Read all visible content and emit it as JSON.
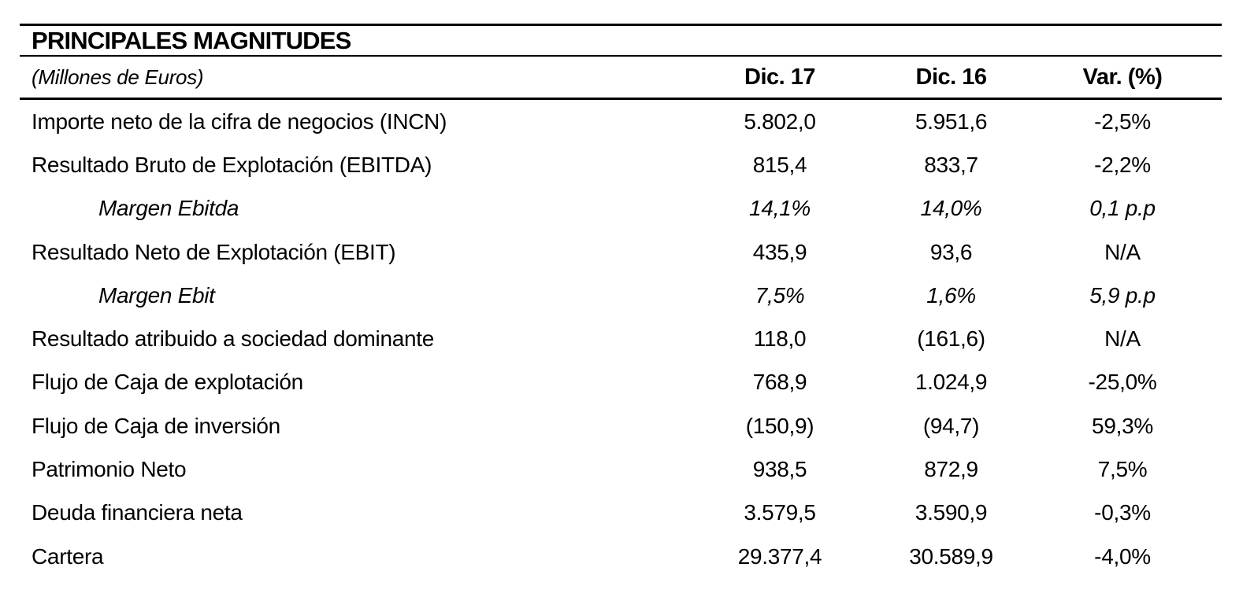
{
  "table": {
    "title": "PRINCIPALES MAGNITUDES",
    "subtitle": "(Millones de Euros)",
    "columns": [
      "Dic. 17",
      "Dic. 16",
      "Var. (%)"
    ],
    "rows": [
      {
        "label": "Importe neto de la cifra de negocios (INCN)",
        "dic17": "5.802,0",
        "dic16": "5.951,6",
        "var": "-2,5%",
        "style": "normal"
      },
      {
        "label": "Resultado Bruto de Explotación (EBITDA)",
        "dic17": "815,4",
        "dic16": "833,7",
        "var": "-2,2%",
        "style": "normal"
      },
      {
        "label": "Margen Ebitda",
        "dic17": "14,1%",
        "dic16": "14,0%",
        "var": "0,1 p.p",
        "style": "italic-indent"
      },
      {
        "label": "Resultado Neto de Explotación (EBIT)",
        "dic17": "435,9",
        "dic16": "93,6",
        "var": "N/A",
        "style": "normal"
      },
      {
        "label": "Margen Ebit",
        "dic17": "7,5%",
        "dic16": "1,6%",
        "var": "5,9 p.p",
        "style": "italic-indent"
      },
      {
        "label": "Resultado atribuido a sociedad dominante",
        "dic17": "118,0",
        "dic16": "(161,6)",
        "var": "N/A",
        "style": "normal"
      },
      {
        "label": "Flujo de Caja de explotación",
        "dic17": "768,9",
        "dic16": "1.024,9",
        "var": "-25,0%",
        "style": "normal"
      },
      {
        "label": "Flujo de Caja de inversión",
        "dic17": "(150,9)",
        "dic16": "(94,7)",
        "var": "59,3%",
        "style": "normal"
      },
      {
        "label": "Patrimonio Neto",
        "dic17": "938,5",
        "dic16": "872,9",
        "var": "7,5%",
        "style": "normal"
      },
      {
        "label": "Deuda financiera neta",
        "dic17": "3.579,5",
        "dic16": "3.590,9",
        "var": "-0,3%",
        "style": "normal"
      },
      {
        "label": "Cartera",
        "dic17": "29.377,4",
        "dic16": "30.589,9",
        "var": "-4,0%",
        "style": "normal"
      }
    ]
  },
  "colors": {
    "text": "#000000",
    "rule": "#000000",
    "background": "#ffffff"
  }
}
